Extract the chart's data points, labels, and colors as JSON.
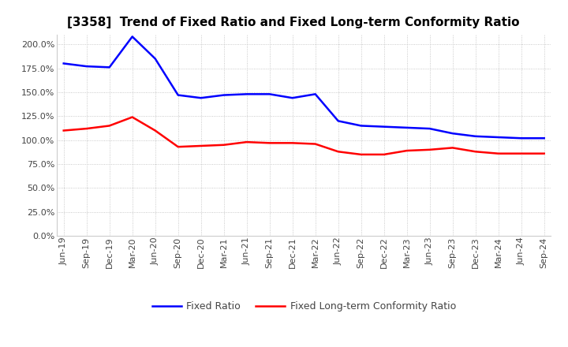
{
  "title": "[3358]  Trend of Fixed Ratio and Fixed Long-term Conformity Ratio",
  "x_labels": [
    "Jun-19",
    "Sep-19",
    "Dec-19",
    "Mar-20",
    "Jun-20",
    "Sep-20",
    "Dec-20",
    "Mar-21",
    "Jun-21",
    "Sep-21",
    "Dec-21",
    "Mar-22",
    "Jun-22",
    "Sep-22",
    "Dec-22",
    "Mar-23",
    "Jun-23",
    "Sep-23",
    "Dec-23",
    "Mar-24",
    "Jun-24",
    "Sep-24"
  ],
  "fixed_ratio": [
    180,
    177,
    176,
    208,
    185,
    147,
    144,
    147,
    148,
    148,
    144,
    148,
    120,
    115,
    114,
    113,
    112,
    107,
    104,
    103,
    102,
    102
  ],
  "fixed_lt_ratio": [
    110,
    112,
    115,
    124,
    110,
    93,
    94,
    95,
    98,
    97,
    97,
    96,
    88,
    85,
    85,
    89,
    90,
    92,
    88,
    86,
    86,
    86
  ],
  "ylim": [
    0,
    210
  ],
  "yticks": [
    0,
    25,
    50,
    75,
    100,
    125,
    150,
    175,
    200
  ],
  "fixed_ratio_color": "#0000FF",
  "fixed_lt_ratio_color": "#FF0000",
  "grid_color": "#BBBBBB",
  "bg_color": "#FFFFFF",
  "line_width": 1.8,
  "title_fontsize": 11,
  "tick_fontsize": 8,
  "legend_fontsize": 9
}
